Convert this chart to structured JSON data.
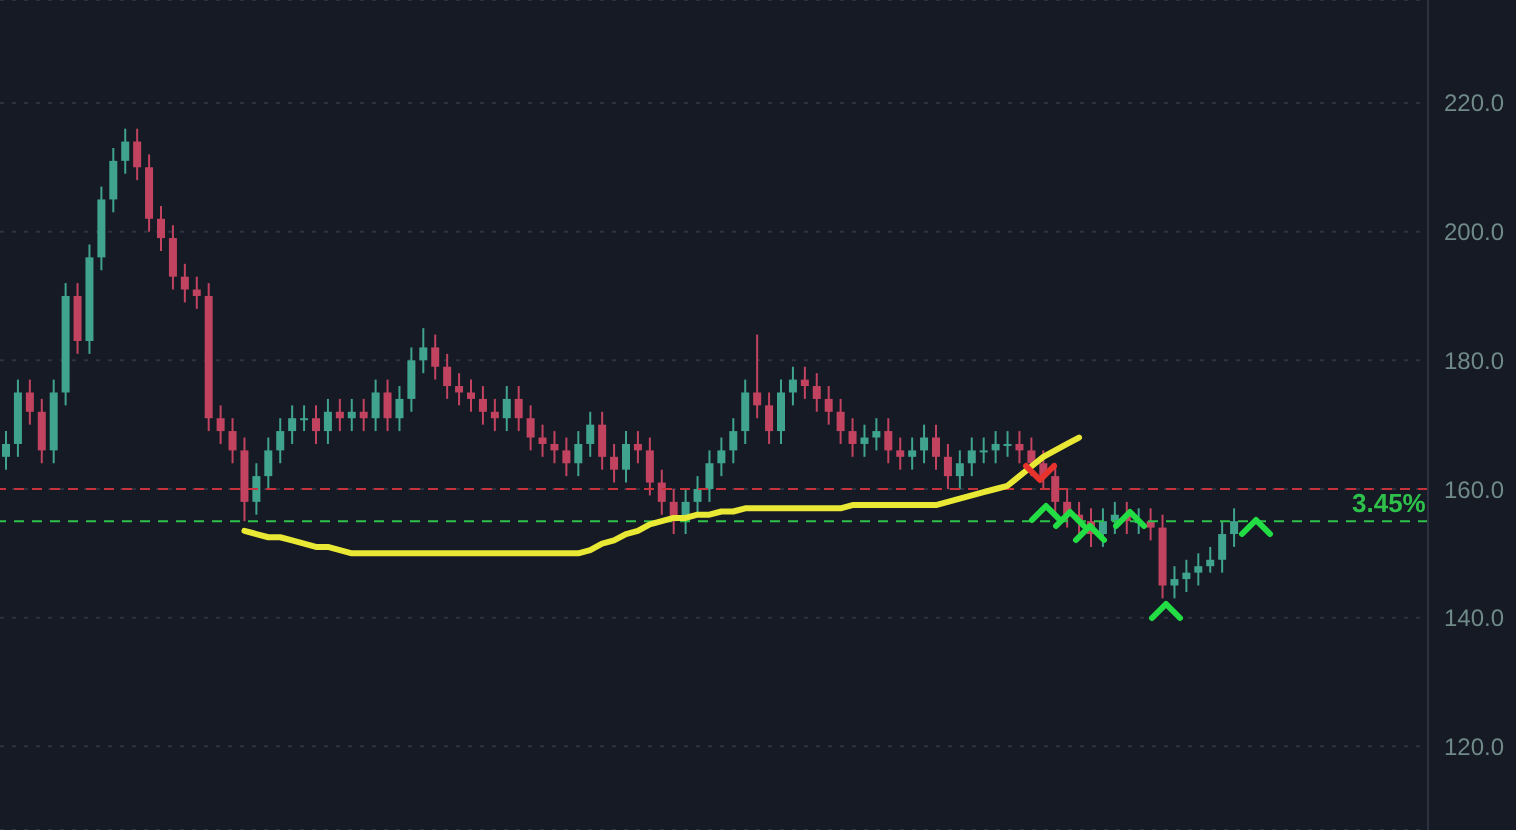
{
  "chart_data": {
    "type": "candlestick",
    "categories": [
      null,
      null,
      null,
      null,
      null,
      null,
      null,
      null,
      null,
      null,
      null,
      null,
      null,
      null,
      null,
      null,
      null,
      null,
      null,
      null,
      null,
      null,
      null,
      null,
      null,
      null,
      null,
      null,
      null,
      null,
      null,
      null,
      null,
      null,
      null,
      null,
      null,
      null,
      null,
      null,
      null,
      null,
      null,
      null,
      null,
      null,
      null,
      null,
      null,
      null,
      null,
      null,
      null,
      null,
      null,
      null,
      null,
      null,
      null,
      null,
      null,
      null,
      null,
      null,
      null,
      null,
      null,
      null,
      null,
      null,
      null,
      null,
      null,
      null,
      null,
      null,
      null,
      null,
      null,
      null,
      null,
      null,
      null,
      null,
      null,
      null,
      null,
      null,
      null,
      null,
      null,
      null,
      null,
      null,
      null,
      null,
      null,
      null,
      null,
      null,
      null,
      null,
      null,
      null
    ],
    "ohlc": [
      [
        165,
        169,
        163,
        167
      ],
      [
        167,
        177,
        165,
        175
      ],
      [
        175,
        177,
        170,
        172
      ],
      [
        172,
        174,
        164,
        166
      ],
      [
        166,
        177,
        164,
        175
      ],
      [
        175,
        192,
        173,
        190
      ],
      [
        190,
        192,
        181,
        183
      ],
      [
        183,
        198,
        181,
        196
      ],
      [
        196,
        207,
        194,
        205
      ],
      [
        205,
        213,
        203,
        211
      ],
      [
        211,
        216,
        209,
        214
      ],
      [
        214,
        216,
        208,
        210
      ],
      [
        210,
        212,
        200,
        202
      ],
      [
        202,
        204,
        197,
        199
      ],
      [
        199,
        201,
        191,
        193
      ],
      [
        193,
        195,
        189,
        191
      ],
      [
        191,
        193,
        188,
        190
      ],
      [
        190,
        192,
        169,
        171
      ],
      [
        171,
        173,
        167,
        169
      ],
      [
        169,
        171,
        164,
        166
      ],
      [
        166,
        168,
        155,
        158
      ],
      [
        158,
        164,
        156,
        162
      ],
      [
        162,
        168,
        160,
        166
      ],
      [
        166,
        171,
        164,
        169
      ],
      [
        169,
        173,
        167,
        171
      ],
      [
        171,
        173,
        169,
        171
      ],
      [
        171,
        173,
        167,
        169
      ],
      [
        169,
        174,
        167,
        172
      ],
      [
        172,
        174,
        169,
        171
      ],
      [
        171,
        174,
        169,
        172
      ],
      [
        172,
        174,
        169,
        171
      ],
      [
        171,
        177,
        169,
        175
      ],
      [
        175,
        177,
        169,
        171
      ],
      [
        171,
        176,
        169,
        174
      ],
      [
        174,
        182,
        172,
        180
      ],
      [
        180,
        185,
        178,
        182
      ],
      [
        182,
        184,
        177,
        179
      ],
      [
        179,
        181,
        174,
        176
      ],
      [
        176,
        178,
        173,
        175
      ],
      [
        175,
        177,
        172,
        174
      ],
      [
        174,
        176,
        170,
        172
      ],
      [
        172,
        174,
        169,
        171
      ],
      [
        171,
        176,
        169,
        174
      ],
      [
        174,
        176,
        169,
        171
      ],
      [
        171,
        173,
        166,
        168
      ],
      [
        168,
        170,
        165,
        167
      ],
      [
        167,
        169,
        164,
        166
      ],
      [
        166,
        168,
        162,
        164
      ],
      [
        164,
        169,
        162,
        167
      ],
      [
        167,
        172,
        165,
        170
      ],
      [
        170,
        172,
        163,
        165
      ],
      [
        165,
        167,
        161,
        163
      ],
      [
        163,
        169,
        161,
        167
      ],
      [
        167,
        169,
        164,
        166
      ],
      [
        166,
        168,
        159,
        161
      ],
      [
        161,
        163,
        156,
        158
      ],
      [
        158,
        160,
        153,
        155
      ],
      [
        155,
        160,
        153,
        158
      ],
      [
        158,
        162,
        156,
        160
      ],
      [
        160,
        166,
        158,
        164
      ],
      [
        164,
        168,
        162,
        166
      ],
      [
        166,
        171,
        164,
        169
      ],
      [
        169,
        177,
        167,
        175
      ],
      [
        175,
        184,
        171,
        173
      ],
      [
        173,
        175,
        167,
        169
      ],
      [
        169,
        177,
        167,
        175
      ],
      [
        175,
        179,
        173,
        177
      ],
      [
        177,
        179,
        174,
        176
      ],
      [
        176,
        178,
        172,
        174
      ],
      [
        174,
        176,
        170,
        172
      ],
      [
        172,
        174,
        167,
        169
      ],
      [
        169,
        171,
        165,
        167
      ],
      [
        167,
        170,
        165,
        168
      ],
      [
        168,
        171,
        166,
        169
      ],
      [
        169,
        171,
        164,
        166
      ],
      [
        166,
        168,
        163,
        165
      ],
      [
        165,
        168,
        163,
        166
      ],
      [
        166,
        170,
        164,
        168
      ],
      [
        168,
        170,
        163,
        165
      ],
      [
        165,
        167,
        160,
        162
      ],
      [
        162,
        166,
        160,
        164
      ],
      [
        164,
        168,
        162,
        166
      ],
      [
        166,
        168,
        164,
        166
      ],
      [
        166,
        169,
        164,
        167
      ],
      [
        167,
        169,
        165,
        167
      ],
      [
        167,
        169,
        164,
        166
      ],
      [
        166,
        168,
        162,
        164
      ],
      [
        164,
        166,
        160,
        162
      ],
      [
        162,
        164,
        156,
        158
      ],
      [
        158,
        160,
        154,
        156
      ],
      [
        156,
        158,
        153,
        155
      ],
      [
        155,
        157,
        151,
        153
      ],
      [
        153,
        157,
        151,
        155
      ],
      [
        155,
        158,
        153,
        156
      ],
      [
        156,
        158,
        153,
        155
      ],
      [
        155,
        157,
        153,
        155
      ],
      [
        155,
        157,
        152,
        154
      ],
      [
        154,
        156,
        143,
        145
      ],
      [
        145,
        148,
        143,
        146
      ],
      [
        146,
        149,
        144,
        147
      ],
      [
        147,
        150,
        145,
        148
      ],
      [
        148,
        151,
        147,
        149
      ],
      [
        149,
        155,
        147,
        153
      ],
      [
        153,
        157,
        151,
        155
      ]
    ],
    "series": [
      {
        "type": "line",
        "color": "#e8e835",
        "values": [
          null,
          null,
          null,
          null,
          null,
          null,
          null,
          null,
          null,
          null,
          null,
          null,
          null,
          null,
          null,
          null,
          null,
          null,
          null,
          null,
          153.5,
          153,
          152.5,
          152.5,
          152,
          151.5,
          151,
          151,
          150.5,
          150,
          150,
          150,
          150,
          150,
          150,
          150,
          150,
          150,
          150,
          150,
          150,
          150,
          150,
          150,
          150,
          150,
          150,
          150,
          150,
          150.5,
          151.5,
          152,
          153,
          153.5,
          154.5,
          155,
          155.5,
          155.5,
          156,
          156,
          156.5,
          156.5,
          157,
          157,
          157,
          157,
          157,
          157,
          157,
          157,
          157,
          157.5,
          157.5,
          157.5,
          157.5,
          157.5,
          157.5,
          157.5,
          157.5,
          158,
          158.5,
          159,
          159.5,
          160,
          160.5,
          162,
          163.5,
          165,
          166,
          167,
          168,
          null,
          null,
          null,
          null,
          null,
          null,
          null,
          null,
          null,
          null,
          null,
          null,
          null
        ]
      }
    ],
    "ref_lines": [
      {
        "axis": "y",
        "value": 160,
        "color": "#c8323a",
        "line_style": "dashed"
      },
      {
        "axis": "y",
        "value": 155,
        "color": "#2ec24a",
        "line_style": "dashed"
      }
    ],
    "annotations": [
      "3.45%"
    ],
    "ylim": [
      107,
      236
    ],
    "yticks": [
      {
        "value": 120,
        "label": "120.0"
      },
      {
        "value": 140,
        "label": "140.0"
      },
      {
        "value": 160,
        "label": "160.0"
      },
      {
        "value": 180,
        "label": "180.0"
      },
      {
        "value": 200,
        "label": "200.0"
      },
      {
        "value": 220,
        "label": "220.0"
      }
    ],
    "tick_labels": "y",
    "grid": "y"
  }
}
